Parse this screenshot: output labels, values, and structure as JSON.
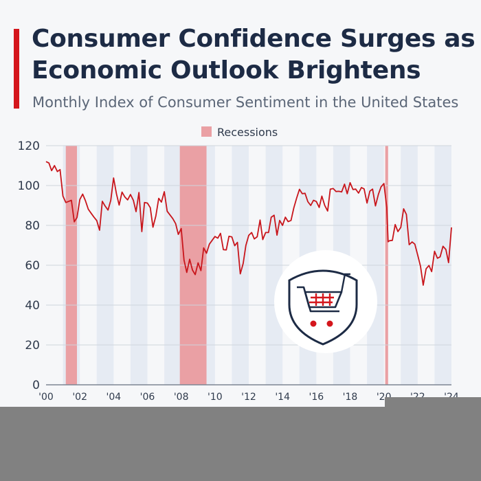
{
  "header": {
    "title": "Consumer Confidence Surges as Economic Outlook Brightens",
    "subtitle": "Monthly Index of Consumer Sentiment in the United States"
  },
  "colors": {
    "accent": "#d4161c",
    "line": "#c8151b",
    "recession": "#eaa0a4",
    "band": "#e6ebf3",
    "title": "#1d2b45",
    "icon": "#1d2b45"
  },
  "icon": {
    "name": "shopping-cart-shield-icon"
  },
  "chart_data": {
    "type": "line",
    "legend": {
      "entries": [
        "Recessions"
      ],
      "placement": "top-center"
    },
    "x_tick_labels": [
      "'00",
      "'02",
      "'04",
      "'06",
      "'08",
      "'10",
      "'12",
      "'14",
      "'16",
      "'18",
      "'20",
      "'22",
      "'24"
    ],
    "x_tick_years": [
      2000,
      2002,
      2004,
      2006,
      2008,
      2010,
      2012,
      2014,
      2016,
      2018,
      2020,
      2022,
      2024
    ],
    "xlim": [
      2000,
      2024
    ],
    "ylim": [
      0,
      120
    ],
    "yticks": [
      0,
      20,
      40,
      60,
      80,
      100,
      120
    ],
    "grid": true,
    "recessions": [
      {
        "start": 2001.17,
        "end": 2001.83
      },
      {
        "start": 2007.92,
        "end": 2009.5
      },
      {
        "start": 2020.08,
        "end": 2020.25
      }
    ],
    "series": [
      {
        "points": [
          [
            2000.0,
            112.0
          ],
          [
            2000.17,
            111.3
          ],
          [
            2000.33,
            107.5
          ],
          [
            2000.5,
            110.0
          ],
          [
            2000.67,
            107.0
          ],
          [
            2000.83,
            108.0
          ],
          [
            2001.0,
            94.7
          ],
          [
            2001.17,
            91.5
          ],
          [
            2001.33,
            92.0
          ],
          [
            2001.5,
            92.6
          ],
          [
            2001.67,
            81.8
          ],
          [
            2001.83,
            83.9
          ],
          [
            2002.0,
            93.0
          ],
          [
            2002.17,
            95.7
          ],
          [
            2002.33,
            92.4
          ],
          [
            2002.5,
            88.1
          ],
          [
            2002.67,
            86.1
          ],
          [
            2002.83,
            84.2
          ],
          [
            2003.0,
            82.4
          ],
          [
            2003.17,
            77.6
          ],
          [
            2003.33,
            92.1
          ],
          [
            2003.5,
            89.7
          ],
          [
            2003.67,
            87.7
          ],
          [
            2003.83,
            92.6
          ],
          [
            2004.0,
            103.8
          ],
          [
            2004.17,
            95.8
          ],
          [
            2004.33,
            90.2
          ],
          [
            2004.5,
            96.7
          ],
          [
            2004.67,
            94.2
          ],
          [
            2004.83,
            92.8
          ],
          [
            2005.0,
            95.5
          ],
          [
            2005.17,
            92.6
          ],
          [
            2005.33,
            86.9
          ],
          [
            2005.5,
            96.5
          ],
          [
            2005.67,
            76.9
          ],
          [
            2005.83,
            91.5
          ],
          [
            2006.0,
            91.2
          ],
          [
            2006.17,
            88.9
          ],
          [
            2006.33,
            79.1
          ],
          [
            2006.5,
            84.7
          ],
          [
            2006.67,
            93.6
          ],
          [
            2006.83,
            91.7
          ],
          [
            2007.0,
            96.9
          ],
          [
            2007.17,
            87.1
          ],
          [
            2007.33,
            85.3
          ],
          [
            2007.5,
            83.4
          ],
          [
            2007.67,
            80.9
          ],
          [
            2007.83,
            75.5
          ],
          [
            2008.0,
            78.4
          ],
          [
            2008.17,
            62.6
          ],
          [
            2008.33,
            56.4
          ],
          [
            2008.5,
            63.0
          ],
          [
            2008.67,
            57.6
          ],
          [
            2008.83,
            55.3
          ],
          [
            2009.0,
            61.2
          ],
          [
            2009.17,
            57.3
          ],
          [
            2009.33,
            68.7
          ],
          [
            2009.5,
            66.0
          ],
          [
            2009.67,
            70.6
          ],
          [
            2009.83,
            72.5
          ],
          [
            2010.0,
            74.4
          ],
          [
            2010.17,
            73.6
          ],
          [
            2010.33,
            76.0
          ],
          [
            2010.5,
            67.8
          ],
          [
            2010.67,
            67.7
          ],
          [
            2010.83,
            74.5
          ],
          [
            2011.0,
            74.2
          ],
          [
            2011.17,
            69.8
          ],
          [
            2011.33,
            71.5
          ],
          [
            2011.5,
            55.7
          ],
          [
            2011.67,
            60.9
          ],
          [
            2011.83,
            69.9
          ],
          [
            2012.0,
            75.0
          ],
          [
            2012.17,
            76.4
          ],
          [
            2012.33,
            73.2
          ],
          [
            2012.5,
            74.3
          ],
          [
            2012.67,
            82.7
          ],
          [
            2012.83,
            72.9
          ],
          [
            2013.0,
            76.4
          ],
          [
            2013.17,
            76.4
          ],
          [
            2013.33,
            84.1
          ],
          [
            2013.5,
            85.1
          ],
          [
            2013.67,
            75.1
          ],
          [
            2013.83,
            82.5
          ],
          [
            2014.0,
            80.0
          ],
          [
            2014.17,
            84.1
          ],
          [
            2014.33,
            81.9
          ],
          [
            2014.5,
            82.5
          ],
          [
            2014.67,
            88.8
          ],
          [
            2014.83,
            93.6
          ],
          [
            2015.0,
            98.1
          ],
          [
            2015.17,
            95.9
          ],
          [
            2015.33,
            96.1
          ],
          [
            2015.5,
            91.9
          ],
          [
            2015.67,
            90.0
          ],
          [
            2015.83,
            92.6
          ],
          [
            2016.0,
            92.0
          ],
          [
            2016.17,
            89.0
          ],
          [
            2016.33,
            94.7
          ],
          [
            2016.5,
            90.0
          ],
          [
            2016.67,
            87.2
          ],
          [
            2016.83,
            98.2
          ],
          [
            2017.0,
            98.5
          ],
          [
            2017.17,
            97.0
          ],
          [
            2017.33,
            97.1
          ],
          [
            2017.5,
            96.8
          ],
          [
            2017.67,
            100.7
          ],
          [
            2017.83,
            95.9
          ],
          [
            2018.0,
            101.4
          ],
          [
            2018.17,
            98.0
          ],
          [
            2018.33,
            98.2
          ],
          [
            2018.5,
            96.2
          ],
          [
            2018.67,
            99.0
          ],
          [
            2018.83,
            98.3
          ],
          [
            2019.0,
            91.2
          ],
          [
            2019.17,
            97.2
          ],
          [
            2019.33,
            98.2
          ],
          [
            2019.5,
            89.8
          ],
          [
            2019.67,
            95.5
          ],
          [
            2019.83,
            99.3
          ],
          [
            2020.0,
            101.0
          ],
          [
            2020.17,
            89.1
          ],
          [
            2020.25,
            71.8
          ],
          [
            2020.33,
            72.3
          ],
          [
            2020.5,
            72.5
          ],
          [
            2020.67,
            80.4
          ],
          [
            2020.83,
            76.9
          ],
          [
            2021.0,
            79.0
          ],
          [
            2021.17,
            88.3
          ],
          [
            2021.33,
            85.5
          ],
          [
            2021.5,
            70.3
          ],
          [
            2021.67,
            71.7
          ],
          [
            2021.83,
            70.6
          ],
          [
            2022.0,
            65.2
          ],
          [
            2022.17,
            59.4
          ],
          [
            2022.33,
            50.0
          ],
          [
            2022.5,
            58.2
          ],
          [
            2022.67,
            59.9
          ],
          [
            2022.83,
            56.8
          ],
          [
            2023.0,
            67.0
          ],
          [
            2023.17,
            63.5
          ],
          [
            2023.33,
            64.2
          ],
          [
            2023.5,
            69.5
          ],
          [
            2023.67,
            67.9
          ],
          [
            2023.83,
            61.3
          ],
          [
            2024.0,
            79.0
          ]
        ]
      }
    ]
  }
}
